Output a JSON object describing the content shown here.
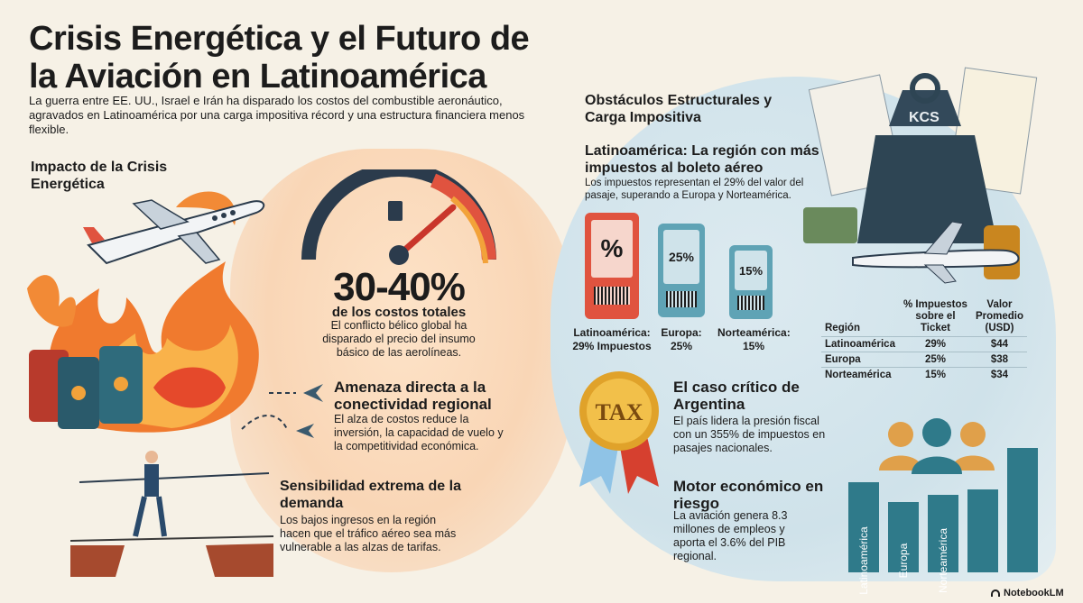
{
  "header": {
    "title": "Crisis Energética y el Futuro de la Aviación en Latinoamérica",
    "intro": "La guerra entre EE. UU., Israel e Irán ha disparado los costos del combustible aeronáutico, agravados en Latinoamérica por una carga impositiva récord y una estructura financiera menos flexible."
  },
  "left": {
    "section_title": "Impacto de la Crisis Energética",
    "stat_value": "30-40%",
    "stat_caption": "de los costos totales",
    "stat_text": "El conflicto bélico global ha disparado el precio del insumo básico de las aerolíneas.",
    "threat_title": "Amenaza directa a la conectividad regional",
    "threat_text": "El alza de costos reduce la inversión, la capacidad de vuelo y la competitividad económica.",
    "demand_title": "Sensibilidad extrema de la demanda",
    "demand_text": "Los bajos ingresos en la región hacen que el tráfico aéreo sea más vulnerable a las alzas de tarifas."
  },
  "right": {
    "section_title": "Obstáculos Estructurales y Carga Impositiva",
    "region_title": "Latinoamérica: La región con más impuestos al boleto aéreo",
    "region_text": "Los impuestos representan el 29% del valor del pasaje, superando a Europa y Norteamérica.",
    "weight_label": "KCS",
    "tickets": [
      {
        "glyph": "%",
        "label": "Latinoamérica: 29% Impuestos",
        "color": "#e0533f"
      },
      {
        "glyph": "25%",
        "label": "Europa: 25%",
        "color": "#5fa3b5"
      },
      {
        "glyph": "15%",
        "label": "Norteamérica: 15%",
        "color": "#5fa3b5"
      }
    ],
    "table": {
      "headers": [
        "Región",
        "% Impuestos sobre el Ticket",
        "Valor Promedio (USD)"
      ],
      "rows": [
        [
          "Latinoamérica",
          "29%",
          "$44"
        ],
        [
          "Europa",
          "25%",
          "$38"
        ],
        [
          "Norteamérica",
          "15%",
          "$34"
        ]
      ]
    },
    "argentina_badge": "TAX",
    "argentina_title": "El caso crítico de Argentina",
    "argentina_text": "El país lidera la presión fiscal con un 355% de impuestos en pasajes nacionales.",
    "engine_title": "Motor económico en riesgo",
    "engine_text": "La aviación genera 8.3 millones de empleos y aporta el 3.6% del PIB regional.",
    "bars": [
      "Latinoamérica",
      "Europa",
      "Norteamérica"
    ]
  },
  "footer": {
    "brand": "NotebookLM"
  },
  "colors": {
    "accent_orange": "#e0533f",
    "accent_teal": "#2f7a8a",
    "gauge_red": "#c9362b"
  }
}
